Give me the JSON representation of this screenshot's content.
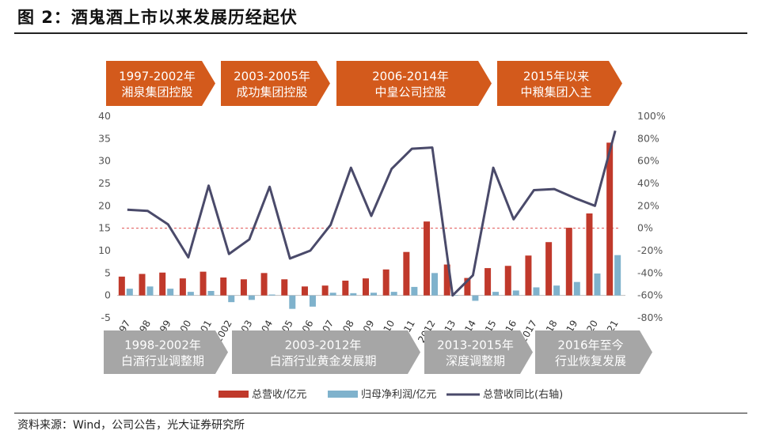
{
  "figure": {
    "title": "图 2：酒鬼酒上市以来发展历经起伏",
    "source": "资料来源：Wind，公司公告，光大证券研究所"
  },
  "top_arrows": [
    {
      "line1": "1997-2002年",
      "line2": "湘泉集团控股",
      "color": "#d35a1c"
    },
    {
      "line1": "2003-2005年",
      "line2": "成功集团控股",
      "color": "#d35a1c"
    },
    {
      "line1": "2006-2014年",
      "line2": "中皇公司控股",
      "color": "#d35a1c"
    },
    {
      "line1": "2015年以来",
      "line2": "中粮集团入主",
      "color": "#d35a1c"
    }
  ],
  "bottom_arrows": [
    {
      "line1": "1998-2002年",
      "line2": "白酒行业调整期",
      "color": "#a6a6a6"
    },
    {
      "line1": "2003-2012年",
      "line2": "白酒行业黄金发展期",
      "color": "#a6a6a6"
    },
    {
      "line1": "2013-2015年",
      "line2": "深度调整期",
      "color": "#a6a6a6"
    },
    {
      "line1": "2016年至今",
      "line2": "行业恢复发展",
      "color": "#a6a6a6"
    }
  ],
  "chart_data": {
    "type": "bar",
    "categories": [
      "1997",
      "1998",
      "1999",
      "2000",
      "2001",
      "2002",
      "2003",
      "2004",
      "2005",
      "2006",
      "2007",
      "2008",
      "2009",
      "2010",
      "2011",
      "2012",
      "2013",
      "2014",
      "2015",
      "2016",
      "2017",
      "2018",
      "2019",
      "2020",
      "2021"
    ],
    "series": [
      {
        "name": "总营收/亿元",
        "type": "bar",
        "axis": "left",
        "color": "#c0392b",
        "values": [
          4.2,
          4.8,
          5.1,
          3.8,
          5.3,
          4.0,
          3.6,
          5.0,
          3.6,
          2.0,
          2.2,
          3.3,
          3.8,
          5.8,
          9.7,
          16.5,
          6.9,
          3.9,
          6.1,
          6.6,
          8.9,
          11.9,
          15.1,
          18.3,
          34.1
        ]
      },
      {
        "name": "归母净利润/亿元",
        "type": "bar",
        "axis": "left",
        "color": "#7fb2cc",
        "values": [
          1.5,
          2.0,
          1.5,
          0.8,
          1.0,
          -1.5,
          -1.0,
          0.2,
          -3.0,
          -2.5,
          0.6,
          0.5,
          0.6,
          0.8,
          1.9,
          5.0,
          0.1,
          -1.2,
          0.8,
          1.1,
          1.8,
          2.2,
          3.0,
          4.9,
          9.0
        ]
      },
      {
        "name": "总营收同比(右轴)",
        "type": "line",
        "axis": "right",
        "color": "#4a4a6a",
        "values": [
          16.5,
          15.5,
          3.5,
          -26,
          38,
          -23,
          -10,
          37,
          -27,
          -20,
          3,
          54,
          11,
          53,
          71,
          72,
          -60,
          -42,
          54,
          8,
          34,
          35,
          27,
          20,
          87
        ]
      }
    ],
    "left_axis": {
      "ticks": [
        40,
        35,
        30,
        25,
        20,
        15,
        10,
        5,
        0,
        -5
      ],
      "ylim": [
        -5,
        40
      ]
    },
    "right_axis": {
      "ticks": [
        "100%",
        "80%",
        "60%",
        "40%",
        "20%",
        "0%",
        "-20%",
        "-40%",
        "-60%",
        "-80%"
      ],
      "ylim": [
        -80,
        100
      ]
    },
    "zero_line_right": {
      "value": 0,
      "style": "dashed",
      "color": "#e05050"
    },
    "legend_placement": "bottom"
  }
}
